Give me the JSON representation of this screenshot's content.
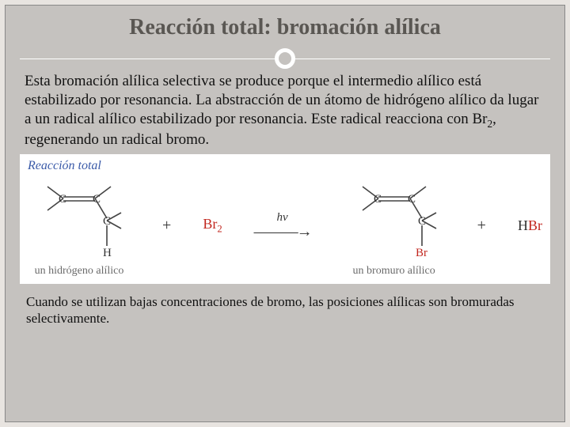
{
  "title": "Reacción total: bromación alílica",
  "paragraph_html": "Esta bromación alílica selectiva se produce porque el intermedio alílico está estabilizado por resonancia. La abstracción de un átomo de hidrógeno alílico da lugar a un radical alílico estabilizado por resonancia. Este radical reacciona con Br<span class=\"sub\">2</span>, regenerando un radical bromo.",
  "reaction": {
    "header": "Reacción total",
    "plus": "+",
    "br2_html": "Br<span class=\"sub\">2</span>",
    "hv": "hv",
    "arrow": "———→",
    "hbr_html": "H<span class=\"br\">Br</span>",
    "reactant_caption": "un hidrógeno alílico",
    "product_caption": "un bromuro alílico",
    "colors": {
      "bond": "#444444",
      "atom": "#333333",
      "br": "#c2271f"
    }
  },
  "caption": "Cuando se utilizan bajas concentraciones de bromo, las posiciones alílicas son bromuradas selectivamente."
}
